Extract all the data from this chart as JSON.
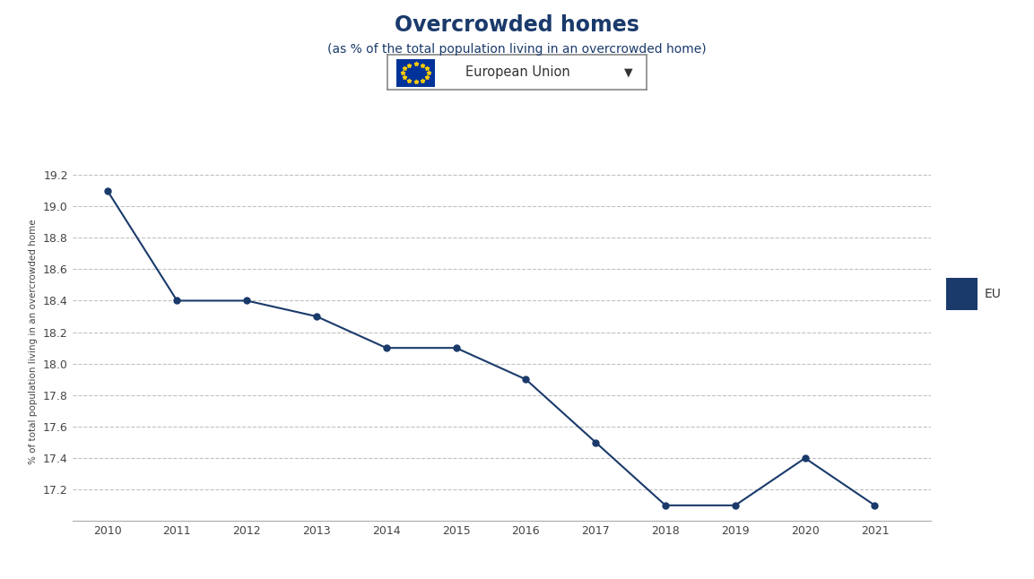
{
  "title": "Overcrowded homes",
  "subtitle": "(as % of the total population living in an overcrowded home)",
  "years": [
    2010,
    2011,
    2012,
    2013,
    2014,
    2015,
    2016,
    2017,
    2018,
    2019,
    2020,
    2021
  ],
  "values": [
    19.1,
    18.4,
    18.4,
    18.3,
    18.1,
    18.1,
    17.9,
    17.5,
    17.1,
    17.1,
    17.4,
    17.1
  ],
  "line_color": "#1a3a6b",
  "marker_color": "#1a3a6b",
  "ylabel": "% of total population living in an overcrowded home",
  "ylim_min": 17.0,
  "ylim_max": 19.28,
  "ytick_values": [
    17.2,
    17.4,
    17.6,
    17.8,
    18.0,
    18.2,
    18.4,
    18.6,
    18.8,
    19.0,
    19.2
  ],
  "background_color": "#ffffff",
  "grid_color": "#bbbbbb",
  "legend_label": "EU",
  "legend_color": "#1a3a6b",
  "title_color": "#1a3a6b",
  "subtitle_color": "#1a3a6b",
  "dropdown_label": "European Union",
  "flag_color": "#003399",
  "star_color": "#FFCC00"
}
